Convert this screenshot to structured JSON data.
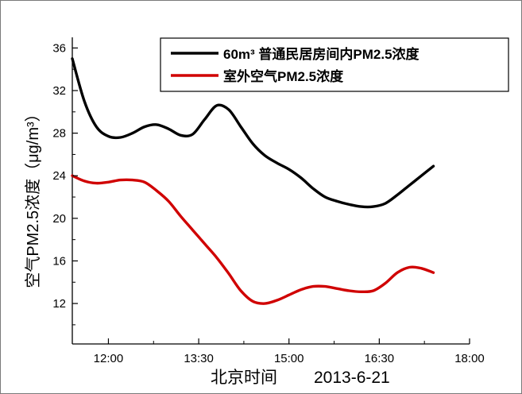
{
  "chart_data": {
    "type": "line",
    "xlabel": "北京时间",
    "xlabel_date": "2013-6-21",
    "ylabel": "空气PM2.5浓度（μg/m³）",
    "x_ticks": [
      "12:00",
      "13:30",
      "15:00",
      "16:30",
      "18:00"
    ],
    "x_tick_values": [
      "12:00",
      "13:30",
      "15:00",
      "16:30",
      "18:00"
    ],
    "xlim": [
      "11:24",
      "18:00"
    ],
    "y_ticks": [
      12,
      16,
      20,
      24,
      28,
      32,
      36
    ],
    "ylim": [
      8.2,
      37
    ],
    "legend_position": "top-right",
    "series": [
      {
        "name": "60m³ 普通民居房间内PM2.5浓度",
        "color": "#000000",
        "points": [
          [
            "11:24",
            35.0
          ],
          [
            "11:36",
            31.0
          ],
          [
            "11:48",
            28.6
          ],
          [
            "12:00",
            27.7
          ],
          [
            "12:12",
            27.6
          ],
          [
            "12:24",
            28.0
          ],
          [
            "12:36",
            28.6
          ],
          [
            "12:48",
            28.8
          ],
          [
            "13:00",
            28.4
          ],
          [
            "13:12",
            27.8
          ],
          [
            "13:24",
            27.9
          ],
          [
            "13:36",
            29.3
          ],
          [
            "13:48",
            30.6
          ],
          [
            "14:00",
            30.2
          ],
          [
            "14:12",
            28.6
          ],
          [
            "14:24",
            27.0
          ],
          [
            "14:36",
            25.9
          ],
          [
            "14:48",
            25.2
          ],
          [
            "15:00",
            24.6
          ],
          [
            "15:12",
            23.8
          ],
          [
            "15:24",
            22.8
          ],
          [
            "15:36",
            22.0
          ],
          [
            "15:48",
            21.6
          ],
          [
            "16:00",
            21.3
          ],
          [
            "16:12",
            21.1
          ],
          [
            "16:24",
            21.1
          ],
          [
            "16:36",
            21.4
          ],
          [
            "16:48",
            22.2
          ],
          [
            "17:00",
            23.1
          ],
          [
            "17:12",
            24.0
          ],
          [
            "17:24",
            24.9
          ]
        ]
      },
      {
        "name": "室外空气PM2.5浓度",
        "color": "#d00000",
        "points": [
          [
            "11:24",
            24.0
          ],
          [
            "11:36",
            23.5
          ],
          [
            "11:48",
            23.3
          ],
          [
            "12:00",
            23.4
          ],
          [
            "12:12",
            23.6
          ],
          [
            "12:24",
            23.6
          ],
          [
            "12:36",
            23.4
          ],
          [
            "12:48",
            22.6
          ],
          [
            "13:00",
            21.6
          ],
          [
            "13:12",
            20.2
          ],
          [
            "13:24",
            18.9
          ],
          [
            "13:36",
            17.6
          ],
          [
            "13:48",
            16.3
          ],
          [
            "14:00",
            14.8
          ],
          [
            "14:12",
            13.2
          ],
          [
            "14:24",
            12.2
          ],
          [
            "14:36",
            12.0
          ],
          [
            "14:48",
            12.3
          ],
          [
            "15:00",
            12.8
          ],
          [
            "15:12",
            13.3
          ],
          [
            "15:24",
            13.6
          ],
          [
            "15:36",
            13.6
          ],
          [
            "15:48",
            13.4
          ],
          [
            "16:00",
            13.2
          ],
          [
            "16:12",
            13.1
          ],
          [
            "16:24",
            13.2
          ],
          [
            "16:36",
            13.9
          ],
          [
            "16:48",
            14.9
          ],
          [
            "17:00",
            15.4
          ],
          [
            "17:12",
            15.3
          ],
          [
            "17:24",
            14.9
          ]
        ]
      }
    ]
  }
}
